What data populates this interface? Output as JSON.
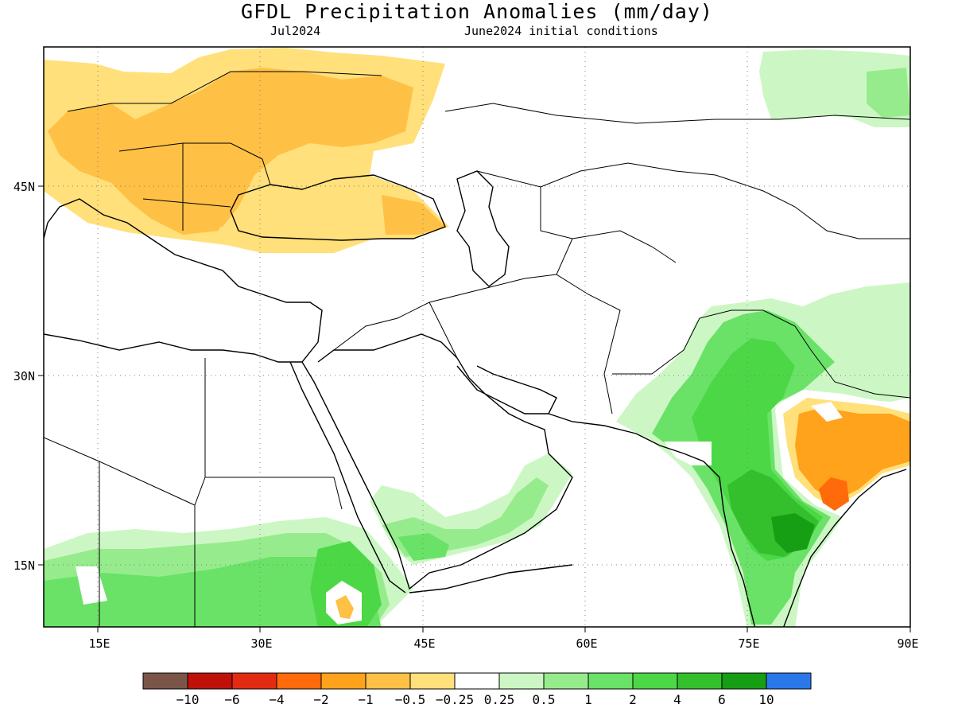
{
  "title": "GFDL Precipitation Anomalies (mm/day)",
  "subtitle_left": "Jul2024",
  "subtitle_right": "June2024 initial conditions",
  "lon_ticks": [
    {
      "value": 15,
      "label": "15E"
    },
    {
      "value": 30,
      "label": "30E"
    },
    {
      "value": 45,
      "label": "45E"
    },
    {
      "value": 60,
      "label": "60E"
    },
    {
      "value": 75,
      "label": "75E"
    },
    {
      "value": 90,
      "label": "90E"
    }
  ],
  "lat_ticks": [
    {
      "value": 45,
      "label": "45N"
    },
    {
      "value": 30,
      "label": "30N"
    },
    {
      "value": 15,
      "label": "15N"
    }
  ],
  "extent": {
    "lon_min": 10,
    "lon_max": 90,
    "lat_min": 10,
    "lat_max": 56
  },
  "colorbar": {
    "colors": [
      "#7a5548",
      "#c0100a",
      "#e32b12",
      "#ff6a0a",
      "#ffa21c",
      "#ffc046",
      "#ffe07a",
      "#ffffff",
      "#ccf7c4",
      "#96ec8c",
      "#6ae267",
      "#4cd846",
      "#33c02c",
      "#169e14",
      "#2a78ea"
    ],
    "labels": [
      "−10",
      "−6",
      "−4",
      "−2",
      "−1",
      "−0.5",
      "−0.25",
      "0.25",
      "0.5",
      "1",
      "2",
      "4",
      "6",
      "10"
    ]
  },
  "anomaly_colors": {
    "dry_light": "#ffe07a",
    "dry_mid": "#ffc046",
    "dry_strong": "#ffa21c",
    "dry_very": "#ff6a0a",
    "wet_pale": "#ccf7c4",
    "wet_light": "#96ec8c",
    "wet_mid": "#6ae267",
    "wet_strong": "#4cd846",
    "wet_very": "#33c02c",
    "wet_max": "#169e14"
  }
}
